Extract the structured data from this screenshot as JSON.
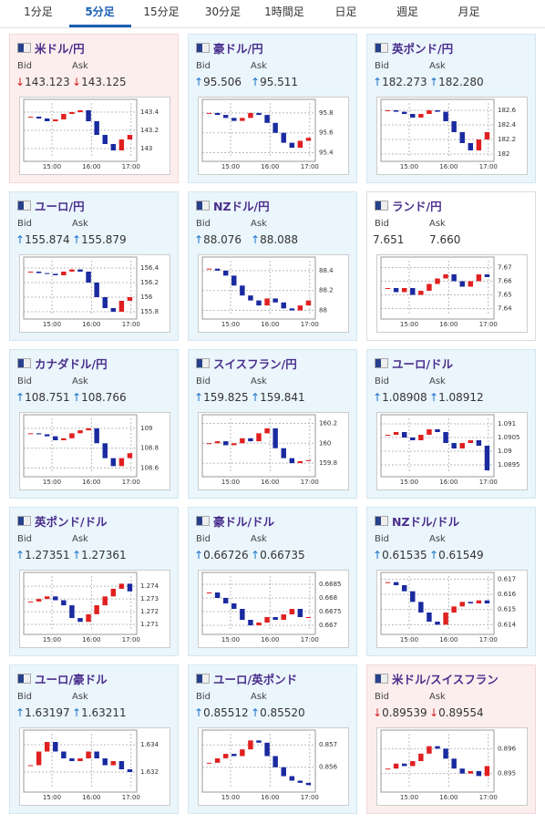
{
  "tabs": [
    "1分足",
    "5分足",
    "15分足",
    "30分足",
    "1時間足",
    "日足",
    "週足",
    "月足"
  ],
  "active_tab": 1,
  "bid_label": "Bid",
  "ask_label": "Ask",
  "xticks": [
    "15:00",
    "16:00",
    "17:00"
  ],
  "cards": [
    {
      "name": "米ドル/円",
      "arrow": "↓",
      "bid": "143.123",
      "ask": "143.125",
      "ylim": [
        142.9,
        143.5
      ],
      "yticks": [
        143.4,
        143.2,
        143
      ],
      "values": [
        143.35,
        143.33,
        143.3,
        143.32,
        143.38,
        143.4,
        143.42,
        143.3,
        143.15,
        143.05,
        142.98,
        143.1,
        143.15
      ]
    },
    {
      "name": "豪ドル/円",
      "arrow": "↑",
      "bid": "95.506",
      "ask": "95.511",
      "ylim": [
        95.35,
        95.9
      ],
      "yticks": [
        95.8,
        95.6,
        95.4
      ],
      "values": [
        95.8,
        95.78,
        95.75,
        95.72,
        95.75,
        95.8,
        95.78,
        95.7,
        95.6,
        95.5,
        95.45,
        95.52,
        95.55
      ]
    },
    {
      "name": "英ポンド/円",
      "arrow": "↑",
      "bid": "182.273",
      "ask": "182.280",
      "ylim": [
        181.95,
        182.7
      ],
      "yticks": [
        182.6,
        182.4,
        182.2,
        182
      ],
      "values": [
        182.6,
        182.58,
        182.55,
        182.5,
        182.55,
        182.6,
        182.58,
        182.45,
        182.3,
        182.15,
        182.05,
        182.2,
        182.3
      ]
    },
    {
      "name": "ユーロ/円",
      "arrow": "↑",
      "bid": "155.874",
      "ask": "155.879",
      "ylim": [
        155.75,
        156.5
      ],
      "yticks": [
        156.4,
        156.2,
        156,
        155.8
      ],
      "values": [
        156.35,
        156.33,
        156.32,
        156.3,
        156.35,
        156.38,
        156.35,
        156.2,
        156.0,
        155.85,
        155.8,
        155.95,
        156.0
      ]
    },
    {
      "name": "NZドル/円",
      "arrow": "↑",
      "bid": "88.076",
      "ask": "88.088",
      "ylim": [
        87.95,
        88.5
      ],
      "yticks": [
        88.4,
        88.2,
        88
      ],
      "values": [
        88.42,
        88.4,
        88.35,
        88.25,
        88.15,
        88.1,
        88.05,
        88.12,
        88.08,
        88.02,
        88.0,
        88.05,
        88.1
      ]
    },
    {
      "name": "ランド/円",
      "arrow": null,
      "bid": "7.651",
      "ask": "7.660",
      "ylim": [
        7.635,
        7.675
      ],
      "yticks": [
        7.67,
        7.66,
        7.65,
        7.64
      ],
      "values": [
        7.655,
        7.652,
        7.655,
        7.65,
        7.653,
        7.658,
        7.662,
        7.665,
        7.66,
        7.656,
        7.66,
        7.665,
        7.663
      ]
    },
    {
      "name": "カナダドル/円",
      "arrow": "↑",
      "bid": "108.751",
      "ask": "108.766",
      "ylim": [
        108.55,
        109.1
      ],
      "yticks": [
        109,
        108.8,
        108.6
      ],
      "values": [
        108.95,
        108.94,
        108.92,
        108.88,
        108.9,
        108.95,
        108.98,
        109.0,
        108.85,
        108.7,
        108.62,
        108.7,
        108.75
      ]
    },
    {
      "name": "スイスフラン/円",
      "arrow": "↑",
      "bid": "159.825",
      "ask": "159.841",
      "ylim": [
        159.7,
        160.25
      ],
      "yticks": [
        160.2,
        160,
        159.8
      ],
      "values": [
        160.0,
        160.02,
        159.98,
        160.0,
        160.05,
        160.02,
        160.1,
        160.15,
        159.95,
        159.85,
        159.8,
        159.82,
        159.83
      ]
    },
    {
      "name": "ユーロ/ドル",
      "arrow": "↑",
      "bid": "1.08908",
      "ask": "1.08912",
      "ylim": [
        1.0892,
        1.0912
      ],
      "yticks": [
        1.091,
        1.0905,
        1.09,
        1.0895
      ],
      "values": [
        1.0906,
        1.0907,
        1.0905,
        1.0904,
        1.0906,
        1.0908,
        1.0907,
        1.0903,
        1.0901,
        1.0903,
        1.0904,
        1.0902,
        1.0893
      ]
    },
    {
      "name": "英ポンド/ドル",
      "arrow": "↑",
      "bid": "1.27351",
      "ask": "1.27361",
      "ylim": [
        1.2705,
        1.2748
      ],
      "yticks": [
        1.274,
        1.273,
        1.272,
        1.271
      ],
      "values": [
        1.2728,
        1.273,
        1.2732,
        1.2729,
        1.2725,
        1.2715,
        1.2712,
        1.2718,
        1.2725,
        1.2732,
        1.2738,
        1.2742,
        1.2736
      ]
    },
    {
      "name": "豪ドル/ドル",
      "arrow": "↑",
      "bid": "0.66726",
      "ask": "0.66735",
      "ylim": [
        0.6668,
        0.6688
      ],
      "yticks": [
        0.6685,
        0.668,
        0.6675,
        0.667
      ],
      "values": [
        0.6682,
        0.668,
        0.6678,
        0.6676,
        0.6672,
        0.667,
        0.6671,
        0.6673,
        0.6672,
        0.6674,
        0.6676,
        0.6673,
        0.6673
      ]
    },
    {
      "name": "NZドル/ドル",
      "arrow": "↑",
      "bid": "0.61535",
      "ask": "0.61549",
      "ylim": [
        0.6136,
        0.6172
      ],
      "yticks": [
        0.617,
        0.616,
        0.615,
        0.614
      ],
      "values": [
        0.6168,
        0.6166,
        0.6162,
        0.6155,
        0.6148,
        0.6142,
        0.614,
        0.6148,
        0.6152,
        0.6155,
        0.6154,
        0.6156,
        0.6154
      ]
    },
    {
      "name": "ユーロ/豪ドル",
      "arrow": "↑",
      "bid": "1.63197",
      "ask": "1.63211",
      "ylim": [
        1.6308,
        1.6348
      ],
      "yticks": [
        1.634,
        1.632
      ],
      "values": [
        1.6325,
        1.6335,
        1.6342,
        1.6335,
        1.633,
        1.6328,
        1.633,
        1.6335,
        1.633,
        1.6325,
        1.6328,
        1.6322,
        1.632
      ]
    },
    {
      "name": "ユーロ/英ポンド",
      "arrow": "↑",
      "bid": "0.85512",
      "ask": "0.85520",
      "ylim": [
        0.85505,
        0.8575
      ],
      "yticks": [
        0.857,
        0.856
      ],
      "values": [
        0.8562,
        0.8564,
        0.8566,
        0.8565,
        0.8568,
        0.8572,
        0.8571,
        0.8565,
        0.856,
        0.8556,
        0.8554,
        0.8553,
        0.8552
      ]
    },
    {
      "name": "米ドル/スイスフラン",
      "arrow": "↓",
      "bid": "0.89539",
      "ask": "0.89554",
      "ylim": [
        0.8944,
        0.8966
      ],
      "yticks": [
        0.896,
        0.895
      ],
      "values": [
        0.8952,
        0.8954,
        0.8953,
        0.8955,
        0.8958,
        0.8961,
        0.896,
        0.8956,
        0.8952,
        0.895,
        0.8951,
        0.8949,
        0.8953
      ]
    }
  ]
}
